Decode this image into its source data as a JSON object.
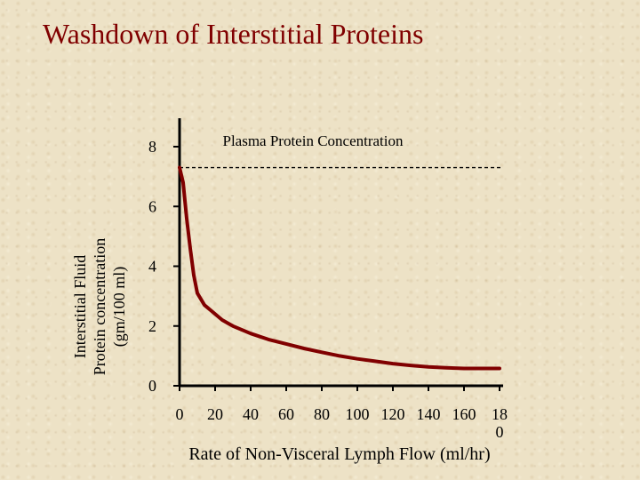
{
  "slide": {
    "title": "Washdown of Interstitial Proteins"
  },
  "chart_data": {
    "type": "line",
    "xlabel": "Rate of Non-Visceral Lymph Flow (ml/hr)",
    "ylabel_lines": [
      "Interstitial Fluid",
      "Protein concentration",
      "(gm/100 ml)"
    ],
    "y_ticks": [
      "0",
      "2",
      "4",
      "6",
      "8"
    ],
    "y_tick_values": [
      0,
      2,
      4,
      6,
      8
    ],
    "x_ticks": [
      "0",
      "20",
      "40",
      "60",
      "80",
      "100",
      "120",
      "140",
      "160",
      "18\n0"
    ],
    "x_tick_values": [
      0,
      20,
      40,
      60,
      80,
      100,
      120,
      140,
      160,
      180
    ],
    "xlim": [
      0,
      180
    ],
    "ylim": [
      0,
      8
    ],
    "reference_line": {
      "label": "Plasma Protein Concentration",
      "y": 7.3,
      "style": "dashed"
    },
    "series": [
      {
        "color": "#800000",
        "x": [
          0,
          2,
          4,
          6,
          8,
          10,
          14,
          18,
          24,
          30,
          40,
          50,
          60,
          70,
          80,
          90,
          100,
          110,
          120,
          130,
          140,
          150,
          160,
          170,
          180
        ],
        "y": [
          7.3,
          6.8,
          5.6,
          4.6,
          3.7,
          3.1,
          2.7,
          2.5,
          2.2,
          2.0,
          1.75,
          1.55,
          1.4,
          1.25,
          1.12,
          1.0,
          0.9,
          0.82,
          0.74,
          0.68,
          0.63,
          0.6,
          0.58,
          0.58,
          0.58
        ]
      }
    ],
    "grid": false,
    "legend": "none"
  }
}
